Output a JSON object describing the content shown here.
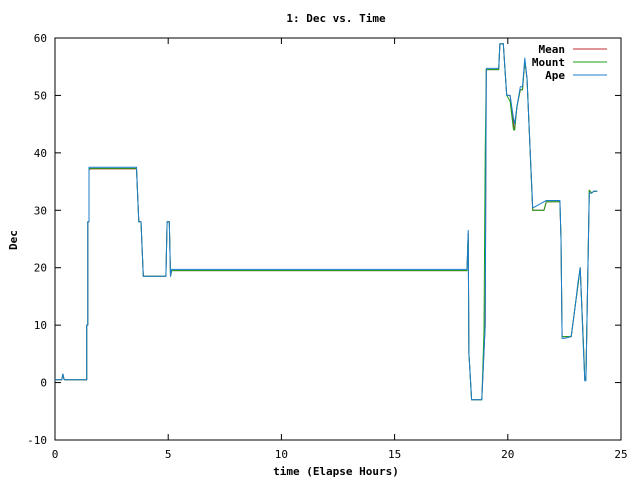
{
  "chart_data": {
    "type": "line",
    "title": "1: Dec vs. Time",
    "xlabel": "time (Elapse Hours)",
    "ylabel": "Dec",
    "xlim": [
      0,
      25
    ],
    "ylim": [
      -10,
      60
    ],
    "xticks": [
      0,
      5,
      10,
      15,
      20,
      25
    ],
    "yticks": [
      -10,
      0,
      10,
      20,
      30,
      40,
      50,
      60
    ],
    "grid": false,
    "legend_position": "top-right",
    "series": [
      {
        "name": "Mean",
        "color": "#c0282d",
        "x": [
          0,
          0.3,
          0.35,
          0.4,
          0.5,
          1.4,
          1.4,
          1.45,
          1.45,
          1.5,
          1.5,
          1.55,
          3.6,
          3.7,
          3.8,
          3.9,
          4.0,
          4.9,
          4.95,
          5.05,
          5.1,
          5.15,
          5.2,
          18.2,
          18.25,
          18.28,
          18.3,
          18.4,
          18.6,
          18.7,
          18.85,
          19.0,
          19.05,
          19.6,
          19.65,
          19.8,
          19.95,
          20.1,
          20.25,
          20.3,
          20.4,
          20.55,
          20.65,
          20.75,
          20.85,
          21.1,
          21.15,
          21.6,
          21.7,
          22.3,
          22.35,
          22.4,
          22.5,
          22.8,
          23.0,
          23.1,
          23.2,
          23.35,
          23.4,
          23.45,
          23.6,
          23.7,
          23.8,
          23.95
        ],
        "values": [
          0.5,
          0.5,
          1.5,
          0.5,
          0.5,
          0.5,
          10,
          10,
          28,
          28,
          37,
          37.2,
          37.2,
          28,
          28,
          18.5,
          18.5,
          18.5,
          28,
          28,
          18.5,
          19.5,
          19.5,
          19.5,
          26,
          5,
          4,
          -3,
          -3,
          -3,
          -3,
          10,
          54.5,
          54.5,
          59,
          59,
          50,
          50,
          45,
          44,
          48,
          51,
          51,
          56,
          53,
          30,
          30,
          30,
          31.5,
          31.5,
          25,
          8,
          8,
          8,
          14,
          17,
          20,
          6,
          0.5,
          0.5,
          33.5,
          33,
          33.3,
          33.3
        ]
      },
      {
        "name": "Mount",
        "color": "#18a018",
        "x": [
          0,
          0.3,
          0.35,
          0.4,
          0.5,
          1.4,
          1.4,
          1.45,
          1.45,
          1.5,
          1.5,
          1.55,
          3.6,
          3.7,
          3.8,
          3.9,
          4.0,
          4.9,
          4.95,
          5.05,
          5.1,
          5.15,
          5.2,
          18.2,
          18.25,
          18.28,
          18.3,
          18.4,
          18.6,
          18.7,
          18.85,
          18.95,
          19.0,
          19.05,
          19.6,
          19.65,
          19.8,
          19.95,
          20.1,
          20.25,
          20.3,
          20.4,
          20.55,
          20.65,
          20.75,
          20.85,
          21.1,
          21.15,
          21.6,
          21.7,
          22.3,
          22.35,
          22.4,
          22.5,
          22.8,
          23.0,
          23.1,
          23.2,
          23.35,
          23.4,
          23.45,
          23.6,
          23.7,
          23.8,
          23.95
        ],
        "values": [
          0.5,
          0.5,
          1.5,
          0.5,
          0.5,
          0.5,
          10,
          10,
          28,
          28,
          37,
          37.3,
          37.3,
          28,
          28,
          18.5,
          18.5,
          18.5,
          28,
          28,
          18.5,
          19.5,
          19.5,
          19.5,
          26,
          5,
          4,
          -3,
          -3,
          -3,
          -3,
          9,
          40,
          54.5,
          54.5,
          59,
          59,
          50,
          49,
          44,
          44,
          48,
          51,
          51,
          56,
          53,
          30,
          30,
          30,
          31.5,
          31.5,
          25,
          8,
          8,
          8,
          14,
          17,
          20,
          6,
          0.5,
          0.5,
          33.5,
          33,
          33.3,
          33.3
        ]
      },
      {
        "name": "Ape",
        "color": "#1a7ecf",
        "x": [
          0,
          0.3,
          0.35,
          0.4,
          0.5,
          1.4,
          1.4,
          1.45,
          1.45,
          1.5,
          1.5,
          1.55,
          3.6,
          3.7,
          3.8,
          3.9,
          4.0,
          4.9,
          4.95,
          5.05,
          5.1,
          5.15,
          5.2,
          18.2,
          18.25,
          18.28,
          18.3,
          18.4,
          18.6,
          18.7,
          18.85,
          19.0,
          19.05,
          19.6,
          19.65,
          19.8,
          19.95,
          20.1,
          20.25,
          20.3,
          20.4,
          20.55,
          20.65,
          20.75,
          20.85,
          21.1,
          21.15,
          21.6,
          21.7,
          22.3,
          22.35,
          22.4,
          22.5,
          22.8,
          23.0,
          23.1,
          23.2,
          23.35,
          23.4,
          23.45,
          23.6,
          23.7,
          23.8,
          23.95
        ],
        "values": [
          0.5,
          0.5,
          1.5,
          0.5,
          0.5,
          0.5,
          10,
          10,
          28,
          28,
          37.5,
          37.5,
          37.5,
          28,
          28,
          18.5,
          18.5,
          18.5,
          28,
          28,
          18.5,
          19.7,
          19.7,
          19.7,
          26.5,
          5,
          4,
          -3,
          -3,
          -3,
          -3,
          10,
          54.7,
          54.7,
          59,
          59,
          50,
          50,
          46,
          45,
          48,
          51.5,
          51.5,
          56.5,
          53,
          30.5,
          30.5,
          31.5,
          31.7,
          31.7,
          25,
          7.7,
          7.7,
          8,
          14,
          17.5,
          20,
          5,
          0.3,
          0.3,
          33,
          33,
          33.3,
          33.3
        ]
      }
    ]
  }
}
